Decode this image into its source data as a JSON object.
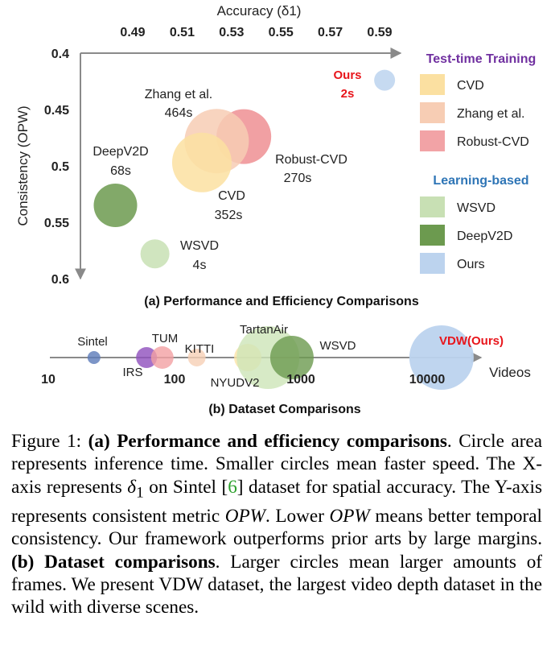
{
  "chart_data": [
    {
      "type": "scatter",
      "title": "(a) Performance and Efficiency Comparisons",
      "xlabel": "Accuracy (δ1)",
      "ylabel": "Consistency (OPW)",
      "xlim": [
        0.47,
        0.605
      ],
      "ylim": [
        0.6,
        0.4
      ],
      "x_ticks": [
        "0.49",
        "0.51",
        "0.53",
        "0.55",
        "0.57",
        "0.59"
      ],
      "y_ticks": [
        "0.4",
        "0.45",
        "0.5",
        "0.55",
        "0.6"
      ],
      "grid": false,
      "legend_position": "right",
      "legend_groups": [
        {
          "title": "Test-time Training",
          "color": "#7030a0",
          "entries": [
            "CVD",
            "Zhang et al.",
            "Robust-CVD"
          ]
        },
        {
          "title": "Learning-based",
          "color": "#2e75b6",
          "entries": [
            "WSVD",
            "DeepV2D",
            "Ours"
          ]
        }
      ],
      "points": [
        {
          "name": "Robust-CVD",
          "x": 0.535,
          "y": 0.474,
          "time_label": "270s",
          "radius": 34,
          "color": "#ee8f93"
        },
        {
          "name": "Zhang et al.",
          "x": 0.524,
          "y": 0.478,
          "time_label": "464s",
          "radius": 40,
          "color": "#f7cdb4"
        },
        {
          "name": "CVD",
          "x": 0.518,
          "y": 0.497,
          "time_label": "352s",
          "radius": 37,
          "color": "#fbe0a1"
        },
        {
          "name": "DeepV2D",
          "x": 0.483,
          "y": 0.535,
          "time_label": "68s",
          "radius": 27,
          "color": "#6c9a4f"
        },
        {
          "name": "WSVD",
          "x": 0.499,
          "y": 0.578,
          "time_label": "4s",
          "radius": 18,
          "color": "#c8e0b4"
        },
        {
          "name": "Ours",
          "x": 0.592,
          "y": 0.424,
          "time_label": "2s",
          "radius": 13,
          "color": "#bcd3ee"
        }
      ]
    },
    {
      "type": "scatter",
      "title": "(b) Dataset Comparisons",
      "xlabel": "Videos",
      "x_scale": "log",
      "xlim": [
        10,
        30000
      ],
      "x_ticks": [
        "10",
        "100",
        "1000",
        "10000"
      ],
      "points": [
        {
          "name": "Sintel",
          "videos": 23,
          "radius": 8,
          "color": "#5b7bb9"
        },
        {
          "name": "IRS",
          "videos": 60,
          "radius": 13,
          "color": "#8f4fbd"
        },
        {
          "name": "TUM",
          "videos": 80,
          "radius": 14,
          "color": "#f3a0a3"
        },
        {
          "name": "KITTI",
          "videos": 150,
          "radius": 11,
          "color": "#f6d0b5"
        },
        {
          "name": "NYUDV2",
          "videos": 380,
          "radius": 17,
          "color": "#fbe4a6"
        },
        {
          "name": "TartanAir",
          "videos": 550,
          "radius": 39,
          "color": "#cde5b8"
        },
        {
          "name": "WSVD",
          "videos": 850,
          "radius": 27,
          "color": "#6c9a4f"
        },
        {
          "name": "VDW(Ours)",
          "videos": 13000,
          "radius": 40,
          "color": "#bcd3ee",
          "highlight": true
        }
      ]
    }
  ],
  "annotations": {
    "ours_top_name": "Ours",
    "ours_top_time": "2s",
    "vdw_label": "VDW(Ours)"
  },
  "caption": {
    "fig_label": "Figure 1:",
    "a_tag": "(a)",
    "a_title": "Performance and efficiency comparisons",
    "a_text_1": "Circle area represents inference time. Smaller circles mean faster speed. The X-axis represents ",
    "delta_symbol": "δ",
    "delta_sub": "1",
    "a_text_2": " on Sintel [",
    "cite": "6",
    "a_text_3": "] dataset for spatial accuracy. The Y-axis represents consistent metric ",
    "opw_1": "OPW",
    "a_text_4": ". Lower ",
    "opw_2": "OPW",
    "a_text_5": " means better temporal consistency. Our framework outperforms prior arts by large margins. ",
    "b_tag": "(b)",
    "b_title": "Dataset comparisons",
    "b_text": ". Larger circles mean larger amounts of frames. We present VDW dataset, the largest video depth dataset in the wild with diverse scenes."
  }
}
